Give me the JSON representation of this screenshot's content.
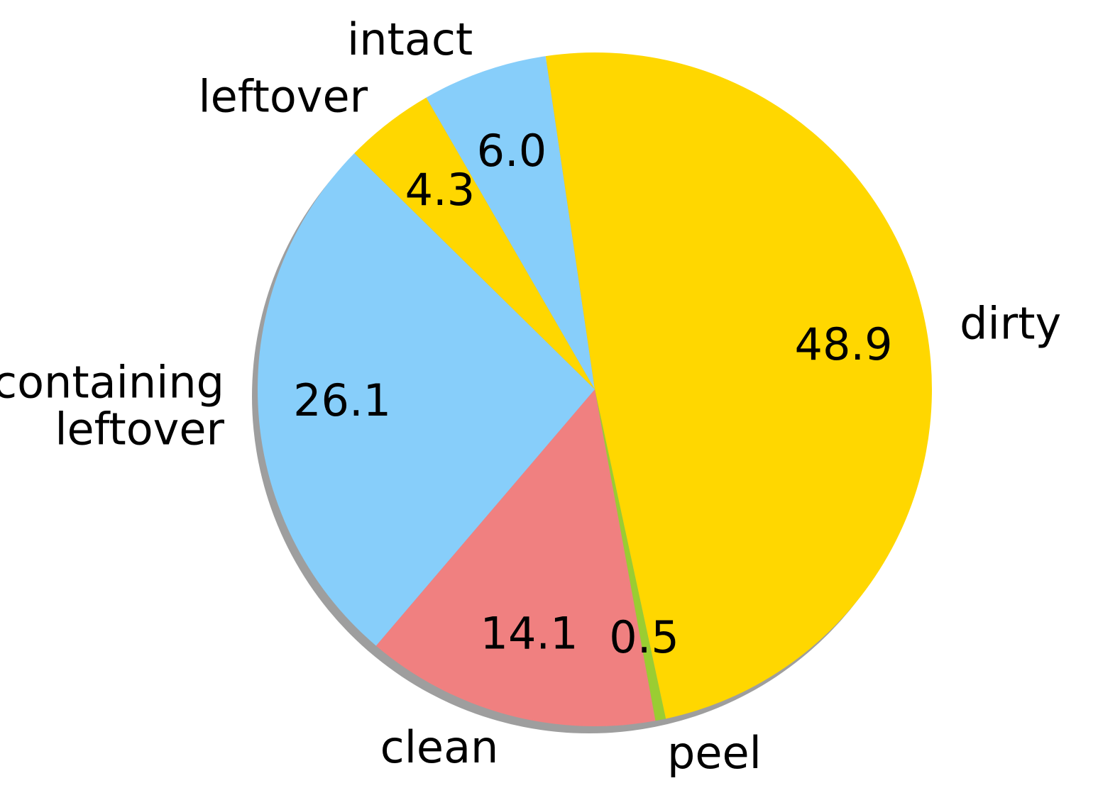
{
  "chart_data": {
    "type": "pie",
    "categories": [
      "intact",
      "dirty",
      "peel",
      "clean",
      "containing leftover",
      "leftover"
    ],
    "values": [
      6.0,
      48.9,
      0.5,
      14.1,
      26.1,
      4.3
    ],
    "value_labels": [
      "6.0",
      "48.9",
      "0.5",
      "14.1",
      "26.1",
      "4.3"
    ],
    "colors": [
      "#87CEFA",
      "#FFD700",
      "#9ACD32",
      "#F08080",
      "#87CEFA",
      "#FFD700"
    ],
    "label_lines": [
      [
        "intact"
      ],
      [
        "dirty"
      ],
      [
        "peel"
      ],
      [
        "clean"
      ],
      [
        "containing",
        "leftover"
      ],
      [
        "leftover"
      ]
    ],
    "start_angle_deg": 120,
    "direction": "clockwise",
    "shadow": true,
    "title": "",
    "legend": "none"
  }
}
